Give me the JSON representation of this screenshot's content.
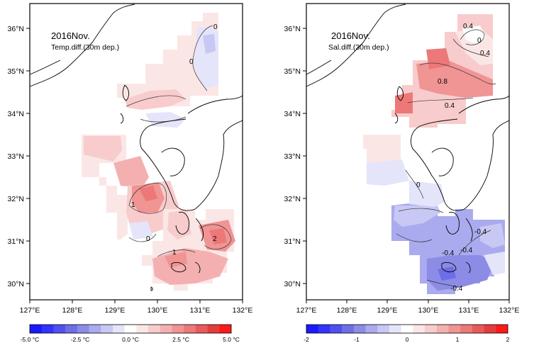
{
  "panels": [
    {
      "title": "2016Nov.",
      "subtitle": "Temp.diff.(30m dep.)",
      "lon_ticks": [
        "127°E",
        "128°E",
        "129°E",
        "130°E",
        "131°E",
        "132°E"
      ],
      "lat_ticks": [
        "30°N",
        "31°N",
        "32°N",
        "33°N",
        "34°N",
        "35°N",
        "36°N"
      ],
      "contour_labels": [
        "0",
        "0",
        "1",
        "1",
        "0",
        "2"
      ],
      "colorbar": {
        "min": -5.0,
        "max": 5.0,
        "unit": "°C",
        "tick_labels": [
          "-5.0 °C",
          "-2.5 °C",
          "0.0 °C",
          "2.5 °C",
          "5.0 °C"
        ],
        "colors": [
          "#1a1aff",
          "#3333ff",
          "#5050f0",
          "#6e6ee6",
          "#8c8ce6",
          "#aaaaee",
          "#c8c8f4",
          "#e4e4fa",
          "#ffffff",
          "#fbe6e6",
          "#f8cccc",
          "#f4b0b0",
          "#f09494",
          "#ec7878",
          "#e85a5a",
          "#e43c3c",
          "#ff1a1a"
        ]
      }
    },
    {
      "title": "2016Nov.",
      "subtitle": "Sal.diff.(30m dep.)",
      "lon_ticks": [
        "127°E",
        "128°E",
        "129°E",
        "130°E",
        "131°E",
        "132°E"
      ],
      "lat_ticks": [
        "30°N",
        "31°N",
        "32°N",
        "33°N",
        "34°N",
        "35°N",
        "36°N"
      ],
      "contour_labels": [
        "0.4",
        "0",
        "0.4",
        "0.8",
        "0.4",
        "0",
        "-0.4",
        "-0.4",
        "-0.4",
        "-0.4"
      ],
      "colorbar": {
        "min": -2,
        "max": 2,
        "unit": "",
        "tick_labels": [
          "-2",
          "-1",
          "0",
          "1",
          "2"
        ],
        "colors": [
          "#1a1aff",
          "#3333ff",
          "#5050f0",
          "#6e6ee6",
          "#8c8ce6",
          "#aaaaee",
          "#c8c8f4",
          "#e4e4fa",
          "#ffffff",
          "#fbe6e6",
          "#f8cccc",
          "#f4b0b0",
          "#f09494",
          "#ec7878",
          "#e85a5a",
          "#e43c3c",
          "#ff1a1a"
        ]
      }
    }
  ],
  "colors": {
    "land_outline": "#000000",
    "frame": "#000000"
  }
}
